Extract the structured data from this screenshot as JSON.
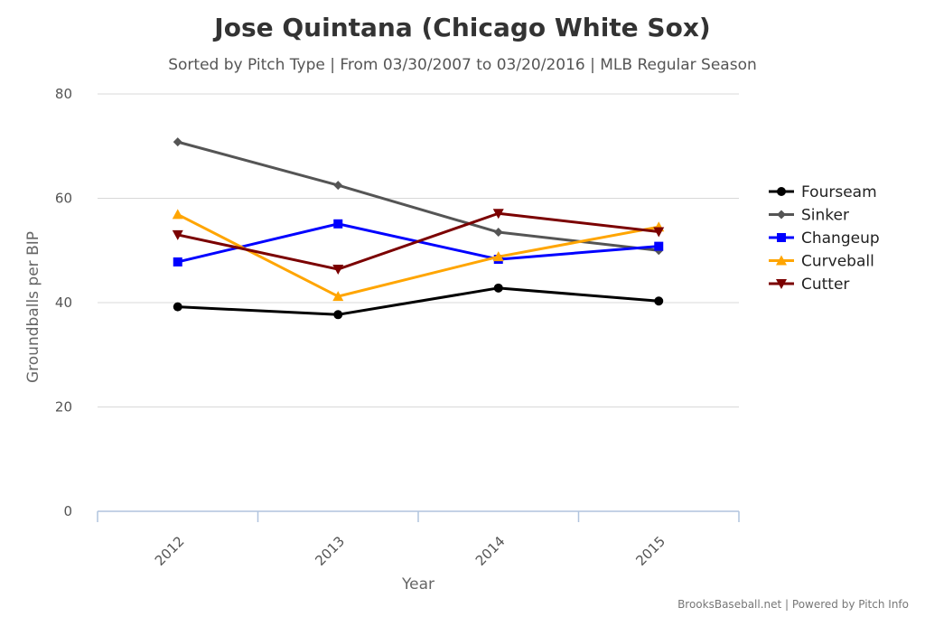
{
  "chart_data": {
    "type": "line",
    "title": "Jose Quintana (Chicago White Sox)",
    "subtitle": "Sorted by Pitch Type | From 03/30/2007 to 03/20/2016 | MLB Regular Season",
    "xlabel": "Year",
    "ylabel": "Groundballs per BIP",
    "categories": [
      "2012",
      "2013",
      "2014",
      "2015"
    ],
    "ylim": [
      0,
      80
    ],
    "yticks": [
      0,
      20,
      40,
      60,
      80
    ],
    "grid": true,
    "legend_position": "right",
    "series": [
      {
        "name": "Fourseam",
        "color": "#000000",
        "marker": "circle",
        "values": [
          39.2,
          37.7,
          42.8,
          40.3
        ]
      },
      {
        "name": "Sinker",
        "color": "#555555",
        "marker": "diamond",
        "values": [
          70.8,
          62.5,
          53.5,
          50.0
        ]
      },
      {
        "name": "Changeup",
        "color": "#0000ff",
        "marker": "square",
        "values": [
          47.8,
          55.1,
          48.3,
          50.8
        ]
      },
      {
        "name": "Curveball",
        "color": "#ffa500",
        "marker": "triangle",
        "values": [
          56.9,
          41.2,
          48.8,
          54.5
        ]
      },
      {
        "name": "Cutter",
        "color": "#7b0000",
        "marker": "triangle-down",
        "values": [
          53.0,
          46.4,
          57.1,
          53.6
        ]
      }
    ]
  },
  "credit": "BrooksBaseball.net | Powered by Pitch Info"
}
